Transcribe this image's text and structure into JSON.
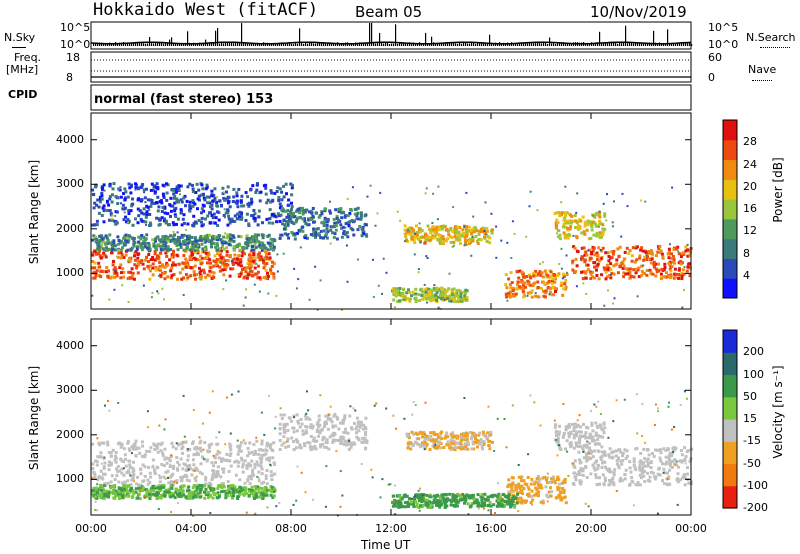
{
  "header": {
    "title": "Hokkaido West (fitACF)",
    "beam": "Beam 05",
    "date": "10/Nov/2019"
  },
  "strips": {
    "nsky_label": "N.Sky",
    "nsky_top": "10^5",
    "nsky_bottom": "10^0",
    "nsearch_label": "N.Search",
    "nsearch_top": "10^5",
    "nsearch_bottom": "10^0",
    "freq_label": "Freq.",
    "freq_unit": "[MHz]",
    "freq_top": "18",
    "freq_bottom": "8",
    "nave_label": "Nave",
    "nave_top": "60",
    "nave_bottom": "0",
    "cpid_label": "CPID",
    "cpid_text": "normal (fast stereo) 153"
  },
  "chart_data": [
    {
      "type": "heatmap",
      "name": "power",
      "ylabel": "Slant Range [km]",
      "yticks": [
        "1000",
        "2000",
        "3000",
        "4000"
      ],
      "ylim": [
        200,
        4600
      ],
      "xticks": [
        "00:00",
        "04:00",
        "08:00",
        "12:00",
        "16:00",
        "20:00",
        "00:00"
      ],
      "colorbar": {
        "label": "Power [dB]",
        "ticks": [
          "4",
          "8",
          "12",
          "16",
          "20",
          "24",
          "28"
        ],
        "range": [
          0,
          32
        ]
      },
      "bands": [
        {
          "t0": 0.0,
          "t1": 7.3,
          "r0": 900,
          "r1": 1550,
          "level": 26
        },
        {
          "t0": 19.2,
          "t1": 24.0,
          "r0": 900,
          "r1": 1650,
          "level": 26
        },
        {
          "t0": 0.0,
          "t1": 7.3,
          "r0": 1550,
          "r1": 1900,
          "level": 10
        },
        {
          "t0": 0.0,
          "t1": 8.0,
          "r0": 2100,
          "r1": 3050,
          "level": 5
        },
        {
          "t0": 7.5,
          "t1": 11.0,
          "r0": 1800,
          "r1": 2500,
          "level": 8
        },
        {
          "t0": 12.5,
          "t1": 16.0,
          "r0": 1700,
          "r1": 2100,
          "level": 20
        },
        {
          "t0": 16.5,
          "t1": 19.0,
          "r0": 500,
          "r1": 1100,
          "level": 24
        },
        {
          "t0": 18.5,
          "t1": 20.5,
          "r0": 1800,
          "r1": 2400,
          "level": 20
        },
        {
          "t0": 12.0,
          "t1": 15.0,
          "r0": 400,
          "r1": 700,
          "level": 16
        }
      ]
    },
    {
      "type": "heatmap",
      "name": "velocity",
      "ylabel": "Slant Range [km]",
      "yticks": [
        "1000",
        "2000",
        "3000",
        "4000"
      ],
      "ylim": [
        200,
        4600
      ],
      "xticks": [
        "00:00",
        "04:00",
        "08:00",
        "12:00",
        "16:00",
        "20:00",
        "00:00"
      ],
      "xlabel": "Time UT",
      "colorbar": {
        "label": "Velocity [m s⁻¹]",
        "ticks": [
          "200",
          "100",
          "50",
          "15",
          "-15",
          "-50",
          "-100",
          "-200"
        ],
        "range": [
          -250,
          250
        ]
      },
      "bands": [
        {
          "t0": 0.0,
          "t1": 7.3,
          "r0": 900,
          "r1": 1900,
          "level": 0
        },
        {
          "t0": 19.2,
          "t1": 24.0,
          "r0": 900,
          "r1": 1750,
          "level": 0
        },
        {
          "t0": 0.0,
          "t1": 7.3,
          "r0": 600,
          "r1": 900,
          "level": 30
        },
        {
          "t0": 7.5,
          "t1": 11.0,
          "r0": 1700,
          "r1": 2500,
          "level": 0
        },
        {
          "t0": 12.5,
          "t1": 16.0,
          "r0": 1700,
          "r1": 2100,
          "level": -30
        },
        {
          "t0": 16.5,
          "t1": 19.0,
          "r0": 500,
          "r1": 1100,
          "level": -40
        },
        {
          "t0": 12.0,
          "t1": 17.0,
          "r0": 400,
          "r1": 700,
          "level": 40
        },
        {
          "t0": 18.5,
          "t1": 20.5,
          "r0": 1700,
          "r1": 2300,
          "level": 0
        }
      ]
    }
  ],
  "colors": {
    "power_scale": [
      "#1010ff",
      "#2a4ab8",
      "#3a7a7a",
      "#4e9a5e",
      "#9ac63c",
      "#e8c010",
      "#f08a10",
      "#ee4a10",
      "#e01010"
    ],
    "velocity_scale": [
      "#1a2ad8",
      "#2a6a6a",
      "#3a9a4a",
      "#7ac83c",
      "#c0c0c0",
      "#f0a020",
      "#f07a10",
      "#e82010"
    ]
  }
}
